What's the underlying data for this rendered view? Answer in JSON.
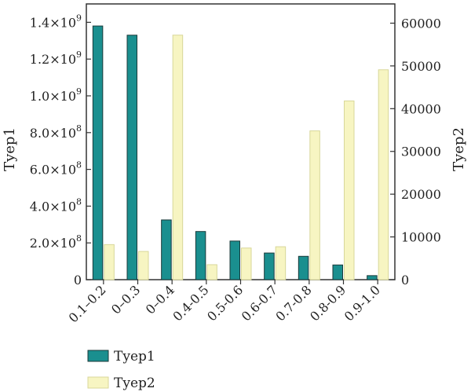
{
  "chart_data": {
    "type": "bar",
    "categories": [
      "0.1–0.2",
      "0–0.3",
      "0–0.4",
      "0.4-0.5",
      "0.5-0.6",
      "0.6-0.7",
      "0.7-0.8",
      "0.8-0.9",
      "0.9-1.0"
    ],
    "series": [
      {
        "name": "Tyep1",
        "axis": "left",
        "color": "#1a8f8f",
        "values": [
          1380000000.0,
          1330000000.0,
          325000000.0,
          262000000.0,
          210000000.0,
          145000000.0,
          127000000.0,
          80000000.0,
          22000000.0
        ]
      },
      {
        "name": "Tyep2",
        "axis": "right",
        "color": "#f7f5c2",
        "values": [
          8200,
          6600,
          57200,
          3500,
          7400,
          7700,
          34800,
          41800,
          49100
        ]
      }
    ],
    "ylabel_left": "Tyep1",
    "ylabel_right": "Tyep2",
    "ylim_left": [
      0,
      1500000000.0
    ],
    "ylim_right": [
      0,
      64500
    ],
    "yticks_left": [
      {
        "value": 0,
        "mant": "0",
        "exp": ""
      },
      {
        "value": 200000000.0,
        "mant": "2.0×10",
        "exp": "8"
      },
      {
        "value": 400000000.0,
        "mant": "4.0×10",
        "exp": "8"
      },
      {
        "value": 600000000.0,
        "mant": "6.0×10",
        "exp": "8"
      },
      {
        "value": 800000000.0,
        "mant": "8.0×10",
        "exp": "8"
      },
      {
        "value": 1000000000.0,
        "mant": "1.0×10",
        "exp": "9"
      },
      {
        "value": 1200000000.0,
        "mant": "1.2×10",
        "exp": "9"
      },
      {
        "value": 1400000000.0,
        "mant": "1.4×10",
        "exp": "9"
      }
    ],
    "yticks_right": [
      0,
      10000,
      20000,
      30000,
      40000,
      50000,
      60000
    ],
    "legend": [
      {
        "label": "Tyep1",
        "color": "#1a8f8f"
      },
      {
        "label": "Tyep2",
        "color": "#f7f5c2"
      }
    ],
    "grid": false,
    "legend_position": "bottom-left"
  }
}
